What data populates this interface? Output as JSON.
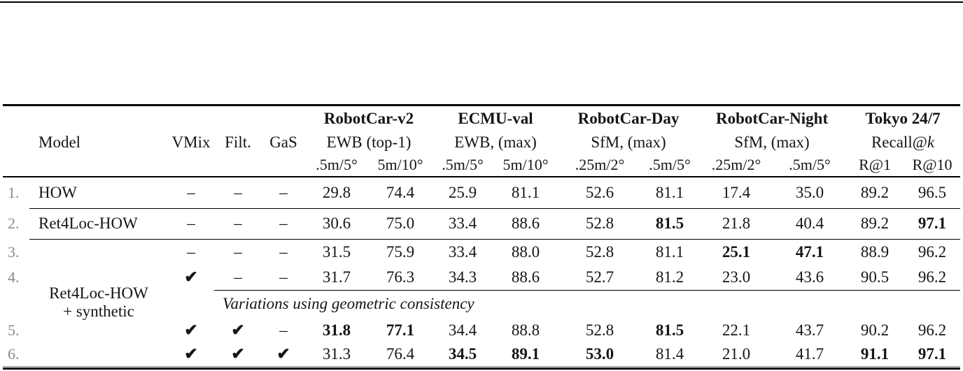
{
  "table": {
    "columns": {
      "model_label": "Model",
      "toggles": [
        "VMix",
        "Filt.",
        "GaS"
      ]
    },
    "groups": [
      {
        "name": "RobotCar-v2",
        "metric": "EWB (top-1)",
        "sub": [
          ".5m/5°",
          "5m/10°"
        ]
      },
      {
        "name": "ECMU-val",
        "metric": "EWB, (max)",
        "sub": [
          ".5m/5°",
          "5m/10°"
        ]
      },
      {
        "name": "RobotCar-Day",
        "metric": "SfM, (max)",
        "sub": [
          ".25m/2°",
          ".5m/5°"
        ]
      },
      {
        "name": "RobotCar-Night",
        "metric": "SfM, (max)",
        "sub": [
          ".25m/2°",
          ".5m/5°"
        ]
      },
      {
        "name": "Tokyo 24/7",
        "metric_prefix": "Recall@",
        "metric_italic": "k",
        "sub": [
          "R@1",
          "R@10"
        ]
      }
    ],
    "group_row_label": {
      "line1": "Ret4Loc-HOW",
      "line2": "+ synthetic"
    },
    "section_note": "Variations using geometric consistency",
    "rows": [
      {
        "num": "1.",
        "model": "HOW",
        "toggles": [
          "–",
          "–",
          "–"
        ],
        "values": [
          "29.8",
          "74.4",
          "25.9",
          "81.1",
          "52.6",
          "81.1",
          "17.4",
          "35.0",
          "89.2",
          "96.5"
        ],
        "bold": []
      },
      {
        "num": "2.",
        "model": "Ret4Loc-HOW",
        "toggles": [
          "–",
          "–",
          "–"
        ],
        "values": [
          "30.6",
          "75.0",
          "33.4",
          "88.6",
          "52.8",
          "81.5",
          "21.8",
          "40.4",
          "89.2",
          "97.1"
        ],
        "bold": [
          5,
          9
        ]
      },
      {
        "num": "3.",
        "toggles": [
          "–",
          "–",
          "–"
        ],
        "values": [
          "31.5",
          "75.9",
          "33.4",
          "88.0",
          "52.8",
          "81.1",
          "25.1",
          "47.1",
          "88.9",
          "96.2"
        ],
        "bold": [
          6,
          7
        ]
      },
      {
        "num": "4.",
        "toggles": [
          "✔",
          "–",
          "–"
        ],
        "values": [
          "31.7",
          "76.3",
          "34.3",
          "88.6",
          "52.7",
          "81.2",
          "23.0",
          "43.6",
          "90.5",
          "96.2"
        ],
        "bold": []
      },
      {
        "num": "5.",
        "toggles": [
          "✔",
          "✔",
          "–"
        ],
        "values": [
          "31.8",
          "77.1",
          "34.4",
          "88.8",
          "52.8",
          "81.5",
          "22.1",
          "43.7",
          "90.2",
          "96.2"
        ],
        "bold": [
          0,
          1,
          5
        ]
      },
      {
        "num": "6.",
        "toggles": [
          "✔",
          "✔",
          "✔"
        ],
        "values": [
          "31.3",
          "76.4",
          "34.5",
          "89.1",
          "53.0",
          "81.4",
          "21.0",
          "41.7",
          "91.1",
          "97.1"
        ],
        "bold": [
          2,
          3,
          4,
          8,
          9
        ]
      }
    ]
  }
}
